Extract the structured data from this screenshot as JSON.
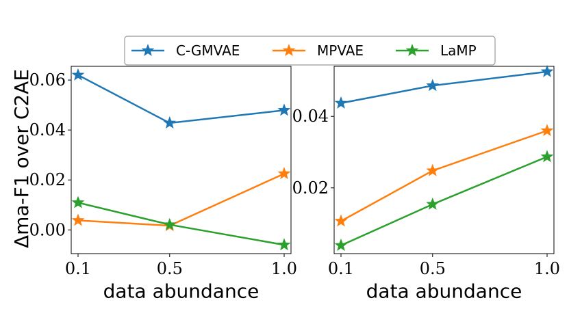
{
  "legend": {
    "entries": [
      {
        "name": "C-GMVAE",
        "color": "#1f77b4"
      },
      {
        "name": "MPVAE",
        "color": "#ff7f0e"
      },
      {
        "name": "LaMP",
        "color": "#2ca02c"
      }
    ]
  },
  "ylabel": "Δma-F1 over C2AE",
  "chart_data": [
    {
      "type": "line",
      "title": "",
      "xlabel": "data abundance",
      "ylabel": "Δma-F1 over C2AE",
      "x": [
        0.1,
        0.5,
        1.0
      ],
      "x_tick_labels": [
        "0.1",
        "0.5",
        "1.0"
      ],
      "y_ticks": [
        0.0,
        0.02,
        0.04,
        0.06
      ],
      "y_tick_labels": [
        "0.00",
        "0.02",
        "0.04",
        "0.06"
      ],
      "ylim": [
        -0.0095,
        0.0655
      ],
      "series": [
        {
          "name": "C-GMVAE",
          "color": "#1f77b4",
          "values": [
            0.062,
            0.0428,
            0.0479
          ]
        },
        {
          "name": "MPVAE",
          "color": "#ff7f0e",
          "values": [
            0.0038,
            0.0017,
            0.0225
          ]
        },
        {
          "name": "LaMP",
          "color": "#2ca02c",
          "values": [
            0.0109,
            0.0021,
            -0.006
          ]
        }
      ]
    },
    {
      "type": "line",
      "title": "",
      "xlabel": "data abundance",
      "ylabel": "",
      "x": [
        0.1,
        0.5,
        1.0
      ],
      "x_tick_labels": [
        "0.1",
        "0.5",
        "1.0"
      ],
      "y_ticks": [
        0.02,
        0.04
      ],
      "y_tick_labels": [
        "0.02",
        "0.04"
      ],
      "ylim": [
        0.0016,
        0.054
      ],
      "series": [
        {
          "name": "C-GMVAE",
          "color": "#1f77b4",
          "values": [
            0.0437,
            0.0486,
            0.0525
          ]
        },
        {
          "name": "MPVAE",
          "color": "#ff7f0e",
          "values": [
            0.0107,
            0.0248,
            0.036
          ]
        },
        {
          "name": "LaMP",
          "color": "#2ca02c",
          "values": [
            0.0039,
            0.0154,
            0.0287
          ]
        }
      ]
    }
  ]
}
